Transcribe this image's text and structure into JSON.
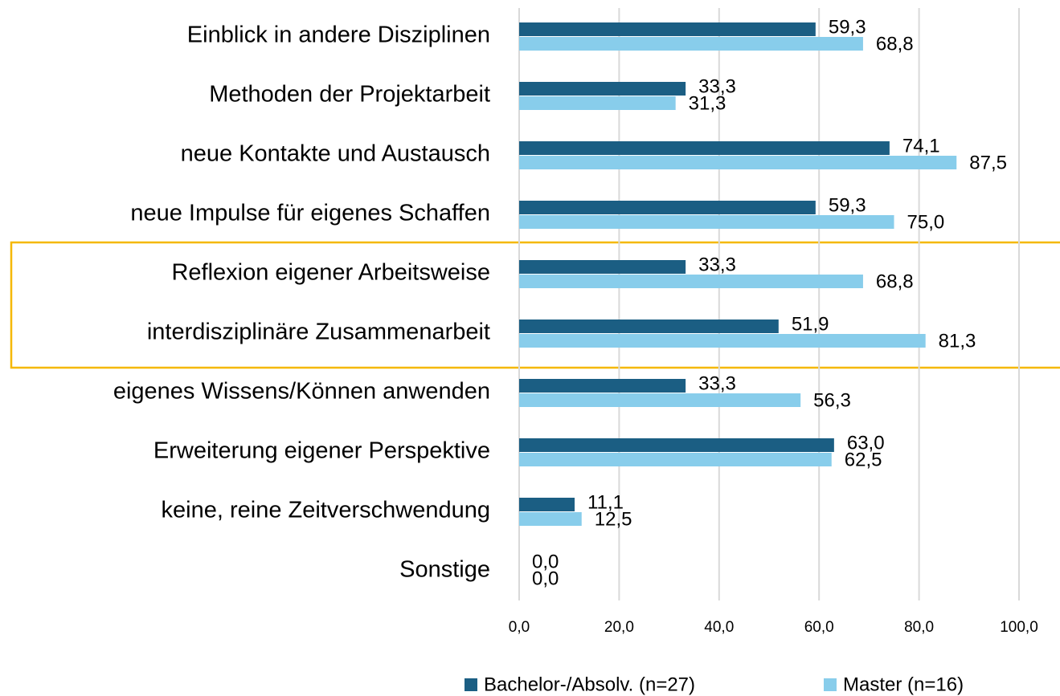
{
  "chart_data": {
    "type": "hbar",
    "categories": [
      "Einblick in andere Disziplinen",
      "Methoden der Projektarbeit",
      "neue Kontakte und Austausch",
      "neue Impulse für eigenes Schaffen",
      "Reflexion eigener Arbeitsweise",
      "interdisziplinäre Zusammenarbeit",
      "eigenes Wissens/Können anwenden",
      "Erweiterung eigener Perspektive",
      "keine, reine Zeitverschwendung",
      "Sonstige"
    ],
    "series": [
      {
        "name": "Bachelor-/Absolv. (n=27)",
        "color": "#1b5e83",
        "values": [
          59.3,
          33.3,
          74.1,
          59.3,
          33.3,
          51.9,
          33.3,
          63.0,
          11.1,
          0.0
        ],
        "value_labels": [
          "59,3",
          "33,3",
          "74,1",
          "59,3",
          "33,3",
          "51,9",
          "33,3",
          "63,0",
          "11,1",
          "0,0"
        ]
      },
      {
        "name": "Master (n=16)",
        "color": "#88cdeb",
        "values": [
          68.8,
          31.3,
          87.5,
          75.0,
          68.8,
          81.3,
          56.3,
          62.5,
          12.5,
          0.0
        ],
        "value_labels": [
          "68,8",
          "31,3",
          "87,5",
          "75,0",
          "68,8",
          "81,3",
          "56,3",
          "62,5",
          "12,5",
          "0,0"
        ]
      }
    ],
    "xlim": [
      0,
      100
    ],
    "xticks": [
      {
        "value": 0,
        "label": "0,0"
      },
      {
        "value": 20,
        "label": "20,0"
      },
      {
        "value": 40,
        "label": "40,0"
      },
      {
        "value": 60,
        "label": "60,0"
      },
      {
        "value": 80,
        "label": "80,0"
      },
      {
        "value": 100,
        "label": "100,0"
      }
    ],
    "grid": true,
    "legend": "bottom"
  }
}
